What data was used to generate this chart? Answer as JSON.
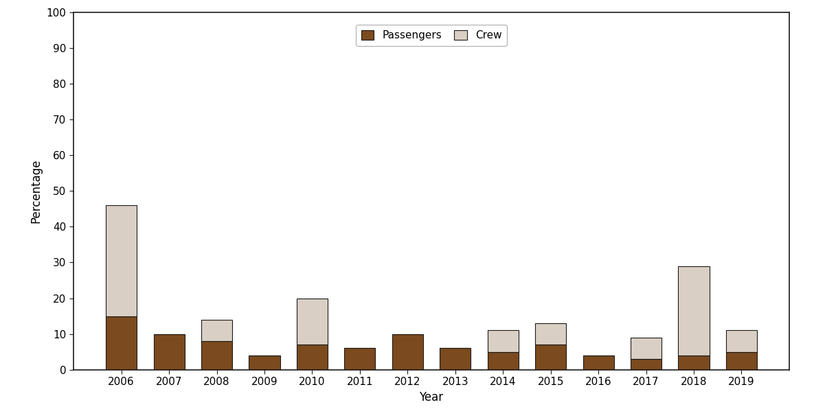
{
  "years": [
    2006,
    2007,
    2008,
    2009,
    2010,
    2011,
    2012,
    2013,
    2014,
    2015,
    2016,
    2017,
    2018,
    2019
  ],
  "passengers": [
    15,
    10,
    8,
    4,
    7,
    6,
    10,
    6,
    5,
    7,
    4,
    3,
    4,
    5
  ],
  "crew": [
    31,
    0,
    6,
    0,
    13,
    0,
    0,
    0,
    6,
    6,
    0,
    6,
    25,
    6
  ],
  "passenger_color": "#7B4A1E",
  "crew_color": "#D9CFC4",
  "ylabel": "Percentage",
  "xlabel": "Year",
  "ylim": [
    0,
    100
  ],
  "yticks": [
    0,
    10,
    20,
    30,
    40,
    50,
    60,
    70,
    80,
    90,
    100
  ],
  "legend_labels": [
    "Passengers",
    "Crew"
  ],
  "bar_width": 0.65,
  "background_color": "#ffffff",
  "edge_color": "#1a1a1a"
}
